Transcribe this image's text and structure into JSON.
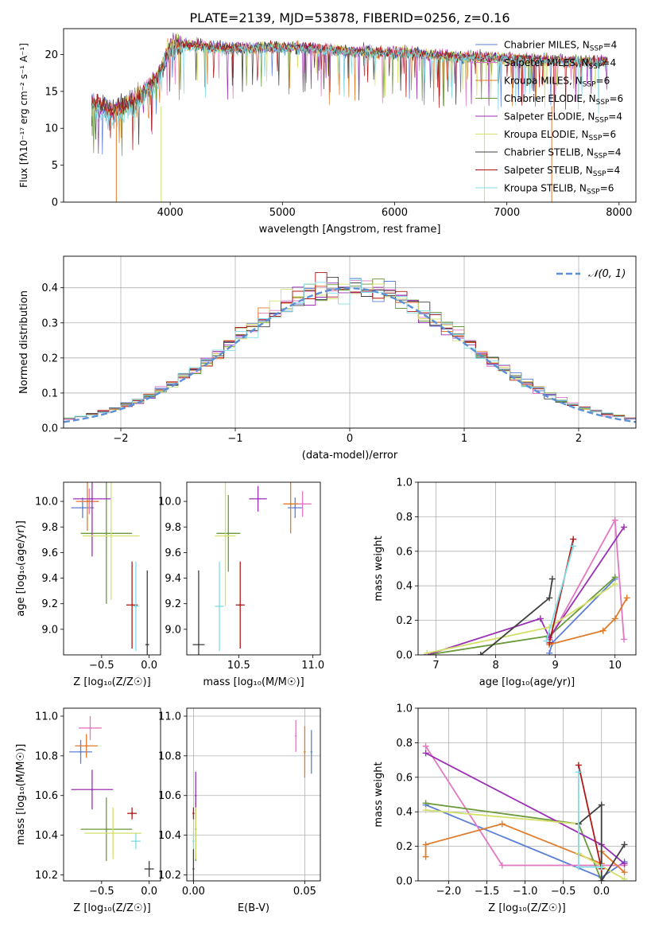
{
  "figure": {
    "title": "PLATE=2139, MJD=53878, FIBERID=0256, z=0.16"
  },
  "colors": {
    "chabrier_miles": "#5b7fd6",
    "salpeter_miles": "#e377c2",
    "kroupa_miles": "#e07b2a",
    "chabrier_elodie": "#6a9a3a",
    "salpeter_elodie": "#9b30b5",
    "kroupa_elodie": "#d4e06a",
    "chabrier_stelib": "#404040",
    "salpeter_stelib": "#b01818",
    "kroupa_stelib": "#80dde6",
    "normal_curve": "#5b8fd6"
  },
  "chart_data": [
    {
      "id": "spectrum",
      "type": "line",
      "xlabel": "wavelength [Angstrom, rest frame]",
      "ylabel": "Flux [fλ10⁻¹⁷ erg cm⁻² s⁻¹ A⁻¹]",
      "xlim": [
        3050,
        8150
      ],
      "ylim": [
        0,
        23.5
      ],
      "xticks": [
        4000,
        5000,
        6000,
        7000,
        8000
      ],
      "yticks": [
        0,
        5,
        10,
        15,
        20
      ],
      "grid": false,
      "legend_position": "right",
      "series": [
        {
          "name": "Chabrier MILES, N_SSP=4",
          "color": "#5b7fd6",
          "x": [
            3300,
            3500,
            3700,
            3900,
            4000,
            4200,
            4500,
            5000,
            5500,
            6000,
            6500,
            7000,
            7500,
            7900
          ],
          "y": [
            13.5,
            12.5,
            14.0,
            17.0,
            21.0,
            21.3,
            20.8,
            21.0,
            20.6,
            20.3,
            19.8,
            19.4,
            19.2,
            19.0
          ]
        },
        {
          "name": "Salpeter MILES, N_SSP=4",
          "color": "#e377c2",
          "x": [
            3300,
            3500,
            3700,
            3900,
            4000,
            4200,
            4500,
            5000,
            5500,
            6000,
            6500,
            7000,
            7500,
            7900
          ],
          "y": [
            13.3,
            12.4,
            14.1,
            17.2,
            21.2,
            21.4,
            20.9,
            21.1,
            20.7,
            20.3,
            19.9,
            19.5,
            19.2,
            19.1
          ]
        },
        {
          "name": "Kroupa MILES, N_SSP=6",
          "color": "#e07b2a",
          "x": [
            3300,
            3500,
            3700,
            3900,
            4000,
            4200,
            4500,
            5000,
            5500,
            6000,
            6500,
            7000,
            7500,
            7900
          ],
          "y": [
            13.4,
            12.5,
            14.0,
            17.1,
            21.0,
            21.2,
            20.8,
            21.0,
            20.6,
            20.2,
            19.8,
            19.5,
            19.1,
            19.0
          ]
        },
        {
          "name": "Chabrier ELODIE, N_SSP=6",
          "color": "#6a9a3a",
          "x": [
            3300,
            3500,
            3700,
            3900,
            4000,
            4200,
            4500,
            5000,
            5500,
            6000,
            6500,
            7000,
            7500,
            7900
          ],
          "y": [
            13.2,
            12.3,
            13.9,
            17.0,
            21.1,
            21.3,
            20.7,
            21.0,
            20.5,
            20.2,
            19.7,
            19.3,
            19.1,
            18.9
          ]
        },
        {
          "name": "Salpeter ELODIE, N_SSP=4",
          "color": "#9b30b5",
          "x": [
            3300,
            3500,
            3700,
            3900,
            4000,
            4200,
            4500,
            5000,
            5500,
            6000,
            6500,
            7000,
            7500,
            7900
          ],
          "y": [
            13.5,
            12.6,
            14.2,
            17.3,
            21.3,
            21.5,
            21.0,
            21.1,
            20.7,
            20.4,
            19.9,
            19.5,
            19.3,
            19.1
          ]
        },
        {
          "name": "Kroupa ELODIE, N_SSP=6",
          "color": "#d4e06a",
          "x": [
            3300,
            3500,
            3700,
            3900,
            4000,
            4200,
            4500,
            5000,
            5500,
            6000,
            6500,
            7000,
            7500,
            7900
          ],
          "y": [
            13.3,
            12.4,
            14.0,
            17.1,
            21.2,
            21.4,
            20.8,
            21.0,
            20.6,
            20.3,
            19.8,
            19.4,
            19.2,
            19.0
          ]
        },
        {
          "name": "Chabrier STELIB, N_SSP=4",
          "color": "#404040",
          "x": [
            3300,
            3500,
            3700,
            3900,
            4000,
            4200,
            4500,
            5000,
            5500,
            6000,
            6500,
            7000,
            7500,
            7900
          ],
          "y": [
            13.4,
            12.5,
            14.1,
            17.2,
            21.1,
            21.3,
            20.9,
            21.1,
            20.6,
            20.3,
            19.8,
            19.5,
            19.2,
            19.0
          ]
        },
        {
          "name": "Salpeter STELIB, N_SSP=4",
          "color": "#b01818",
          "x": [
            3300,
            3500,
            3700,
            3900,
            4000,
            4200,
            4500,
            5000,
            5500,
            6000,
            6500,
            7000,
            7500,
            7900
          ],
          "y": [
            13.4,
            12.5,
            14.0,
            17.1,
            21.1,
            21.3,
            20.8,
            21.0,
            20.6,
            20.3,
            19.8,
            19.4,
            19.2,
            19.0
          ]
        },
        {
          "name": "Kroupa STELIB, N_SSP=6",
          "color": "#80dde6",
          "x": [
            3300,
            3500,
            3700,
            3900,
            4000,
            4200,
            4500,
            5000,
            5500,
            6000,
            6500,
            7000,
            7500,
            7900
          ],
          "y": [
            12.5,
            11.0,
            13.0,
            16.5,
            20.5,
            20.8,
            20.5,
            20.8,
            20.4,
            20.0,
            19.6,
            19.3,
            19.0,
            18.8
          ]
        }
      ],
      "legend": [
        "Chabrier MILES, N$_{SSP}$=4",
        "Salpeter MILES, N$_{SSP}$=4",
        "Kroupa MILES, N$_{SSP}$=6",
        "Chabrier ELODIE, N$_{SSP}$=6",
        "Salpeter ELODIE, N$_{SSP}$=4",
        "Kroupa ELODIE, N$_{SSP}$=6",
        "Chabrier STELIB, N$_{SSP}$=4",
        "Salpeter STELIB, N$_{SSP}$=4",
        "Kroupa STELIB, N$_{SSP}$=6"
      ]
    },
    {
      "id": "residuals",
      "type": "step",
      "xlabel": "(data-model)/error",
      "ylabel": "Normed distribution",
      "xlim": [
        -2.5,
        2.5
      ],
      "ylim": [
        0,
        0.49
      ],
      "xticks": [
        -2,
        -1,
        0,
        1,
        2
      ],
      "yticks": [
        0.0,
        0.1,
        0.2,
        0.3,
        0.4
      ],
      "grid": true,
      "legend_position": "top-right",
      "legend": [
        "𝒩(0, 1)"
      ],
      "normal_curve": {
        "mean": 0,
        "std": 1
      },
      "histogram_bin_width": 0.1,
      "histogram_range": [
        -2.5,
        2.5
      ]
    },
    {
      "id": "age_vs_Z",
      "type": "errorbar",
      "xlabel": "Z [log₁₀(Z/Z☉)]",
      "ylabel": "age  [log₁₀(age/yr)]",
      "xlim": [
        -0.9,
        0.12
      ],
      "ylim": [
        8.8,
        10.15
      ],
      "xticks": [
        -0.5,
        0.0
      ],
      "yticks": [
        9.0,
        9.2,
        9.4,
        9.6,
        9.8,
        10.0
      ],
      "grid": false,
      "points": [
        {
          "x": -0.7,
          "xerr": 0.12,
          "y": 9.95,
          "yerr": 0.08,
          "color": "#5b7fd6"
        },
        {
          "x": -0.63,
          "xerr": 0.1,
          "y": 10.0,
          "yerr": 0.1,
          "color": "#e377c2"
        },
        {
          "x": -0.65,
          "xerr": 0.12,
          "y": 10.0,
          "yerr": 0.23,
          "color": "#e07b2a"
        },
        {
          "x": -0.45,
          "xerr": 0.27,
          "y": 9.75,
          "yerr": 0.55,
          "color": "#6a9a3a"
        },
        {
          "x": -0.6,
          "xerr": 0.2,
          "y": 10.02,
          "yerr": 0.45,
          "color": "#9b30b5"
        },
        {
          "x": -0.4,
          "xerr": 0.3,
          "y": 9.73,
          "yerr": 0.5,
          "color": "#d4e06a"
        },
        {
          "x": -0.02,
          "xerr": 0.02,
          "y": 8.88,
          "yerr": 0.58,
          "color": "#404040"
        },
        {
          "x": -0.18,
          "xerr": 0.06,
          "y": 9.19,
          "yerr": 0.34,
          "color": "#b01818"
        },
        {
          "x": -0.14,
          "xerr": 0.03,
          "y": 9.18,
          "yerr": 0.35,
          "color": "#80dde6"
        }
      ]
    },
    {
      "id": "age_vs_mass",
      "type": "errorbar",
      "xlabel": "mass [log₁₀(M/M☉)]",
      "ylabel": "",
      "xlim": [
        10.15,
        11.05
      ],
      "ylim": [
        8.8,
        10.15
      ],
      "xticks": [
        10.5,
        11.0
      ],
      "yticks": [
        9.0,
        9.2,
        9.4,
        9.6,
        9.8,
        10.0
      ],
      "grid": false,
      "points": [
        {
          "x": 10.88,
          "xerr": 0.05,
          "y": 9.95,
          "yerr": 0.08,
          "color": "#5b7fd6"
        },
        {
          "x": 10.93,
          "xerr": 0.06,
          "y": 9.98,
          "yerr": 0.1,
          "color": "#e377c2"
        },
        {
          "x": 10.85,
          "xerr": 0.05,
          "y": 9.98,
          "yerr": 0.23,
          "color": "#e07b2a"
        },
        {
          "x": 10.43,
          "xerr": 0.08,
          "y": 9.75,
          "yerr": 0.3,
          "color": "#6a9a3a"
        },
        {
          "x": 10.63,
          "xerr": 0.06,
          "y": 10.02,
          "yerr": 0.1,
          "color": "#9b30b5"
        },
        {
          "x": 10.41,
          "xerr": 0.07,
          "y": 9.73,
          "yerr": 0.55,
          "color": "#d4e06a"
        },
        {
          "x": 10.23,
          "xerr": 0.04,
          "y": 8.88,
          "yerr": 0.58,
          "color": "#404040"
        },
        {
          "x": 10.51,
          "xerr": 0.03,
          "y": 9.19,
          "yerr": 0.34,
          "color": "#b01818"
        },
        {
          "x": 10.37,
          "xerr": 0.03,
          "y": 9.18,
          "yerr": 0.35,
          "color": "#80dde6"
        }
      ]
    },
    {
      "id": "weight_vs_age",
      "type": "line",
      "xlabel": "age  [log₁₀(age/yr)]",
      "ylabel": "mass weight",
      "xlim": [
        6.7,
        10.35
      ],
      "ylim": [
        0,
        1.0
      ],
      "xticks": [
        7,
        8,
        9,
        10
      ],
      "yticks": [
        0.0,
        0.2,
        0.4,
        0.6,
        0.8,
        1.0
      ],
      "grid": true,
      "series": [
        {
          "color": "#5b7fd6",
          "x": [
            8.9,
            8.95,
            10.0
          ],
          "y": [
            0.01,
            0.07,
            0.44
          ]
        },
        {
          "color": "#e377c2",
          "x": [
            8.9,
            10.0,
            10.15
          ],
          "y": [
            0.09,
            0.78,
            0.09
          ]
        },
        {
          "color": "#e07b2a",
          "x": [
            8.9,
            9.8,
            10.0,
            10.2
          ],
          "y": [
            0.06,
            0.14,
            0.21,
            0.33
          ]
        },
        {
          "color": "#6a9a3a",
          "x": [
            6.85,
            8.9,
            10.0
          ],
          "y": [
            0.0,
            0.11,
            0.45
          ]
        },
        {
          "color": "#9b30b5",
          "x": [
            6.85,
            8.75,
            8.9,
            10.15
          ],
          "y": [
            0.0,
            0.21,
            0.1,
            0.74
          ]
        },
        {
          "color": "#d4e06a",
          "x": [
            6.85,
            8.9,
            10.0
          ],
          "y": [
            0.01,
            0.16,
            0.41
          ]
        },
        {
          "color": "#404040",
          "x": [
            7.75,
            8.9,
            8.95
          ],
          "y": [
            0.0,
            0.33,
            0.44
          ]
        },
        {
          "color": "#b01818",
          "x": [
            8.9,
            9.3
          ],
          "y": [
            0.07,
            0.67
          ]
        },
        {
          "color": "#80dde6",
          "x": [
            8.85,
            9.3
          ],
          "y": [
            0.08,
            0.63
          ]
        }
      ]
    },
    {
      "id": "mass_vs_Z",
      "type": "errorbar",
      "xlabel": "Z [log₁₀(Z/Z☉)]",
      "ylabel": "mass [log₁₀(M/M☉)]",
      "xlim": [
        -0.9,
        0.12
      ],
      "ylim": [
        10.17,
        11.04
      ],
      "xticks": [
        -0.5,
        0.0
      ],
      "yticks": [
        10.2,
        10.4,
        10.6,
        10.8,
        11.0
      ],
      "grid": false,
      "points": [
        {
          "x": -0.72,
          "xerr": 0.12,
          "y": 10.82,
          "yerr": 0.06,
          "color": "#5b7fd6"
        },
        {
          "x": -0.62,
          "xerr": 0.12,
          "y": 10.94,
          "yerr": 0.06,
          "color": "#e377c2"
        },
        {
          "x": -0.66,
          "xerr": 0.12,
          "y": 10.85,
          "yerr": 0.06,
          "color": "#e07b2a"
        },
        {
          "x": -0.45,
          "xerr": 0.27,
          "y": 10.43,
          "yerr": 0.16,
          "color": "#6a9a3a"
        },
        {
          "x": -0.6,
          "xerr": 0.22,
          "y": 10.63,
          "yerr": 0.1,
          "color": "#9b30b5"
        },
        {
          "x": -0.38,
          "xerr": 0.3,
          "y": 10.41,
          "yerr": 0.13,
          "color": "#d4e06a"
        },
        {
          "x": 0.0,
          "xerr": 0.05,
          "y": 10.23,
          "yerr": 0.04,
          "color": "#404040"
        },
        {
          "x": -0.18,
          "xerr": 0.05,
          "y": 10.51,
          "yerr": 0.03,
          "color": "#b01818"
        },
        {
          "x": -0.14,
          "xerr": 0.05,
          "y": 10.37,
          "yerr": 0.04,
          "color": "#80dde6"
        }
      ]
    },
    {
      "id": "mass_vs_ebv",
      "type": "errorbar",
      "xlabel": "E(B-V)",
      "ylabel": "",
      "xlim": [
        -0.003,
        0.057
      ],
      "ylim": [
        10.17,
        11.04
      ],
      "xticks": [
        0.0,
        0.05
      ],
      "yticks": [
        10.2,
        10.4,
        10.6,
        10.8,
        11.0
      ],
      "grid": true,
      "points": [
        {
          "x": 0.053,
          "xerr": 0.0,
          "y": 10.82,
          "yerr": 0.11,
          "color": "#5b7fd6"
        },
        {
          "x": 0.046,
          "xerr": 0.0,
          "y": 10.9,
          "yerr": 0.08,
          "color": "#e377c2"
        },
        {
          "x": 0.05,
          "xerr": 0.0,
          "y": 10.82,
          "yerr": 0.13,
          "color": "#e07b2a"
        },
        {
          "x": 0.001,
          "xerr": 0.0,
          "y": 10.43,
          "yerr": 0.16,
          "color": "#6a9a3a"
        },
        {
          "x": 0.001,
          "xerr": 0.0,
          "y": 10.6,
          "yerr": 0.12,
          "color": "#9b30b5"
        },
        {
          "x": 0.001,
          "xerr": 0.0,
          "y": 10.41,
          "yerr": 0.13,
          "color": "#d4e06a"
        },
        {
          "x": 0.0,
          "xerr": 0.0,
          "y": 10.23,
          "yerr": 0.1,
          "color": "#404040"
        },
        {
          "x": 0.0,
          "xerr": 0.0,
          "y": 10.51,
          "yerr": 0.03,
          "color": "#b01818"
        },
        {
          "x": 0.0,
          "xerr": 0.0,
          "y": 10.37,
          "yerr": 0.04,
          "color": "#80dde6"
        }
      ]
    },
    {
      "id": "weight_vs_Z",
      "type": "line",
      "xlabel": "Z [log₁₀(Z/Z☉)]",
      "ylabel": "mass weight",
      "xlim": [
        -2.4,
        0.45
      ],
      "ylim": [
        0,
        1.0
      ],
      "xticks": [
        -2.0,
        -1.5,
        -1.0,
        -0.5,
        0.0
      ],
      "yticks": [
        0.0,
        0.2,
        0.4,
        0.6,
        0.8,
        1.0
      ],
      "grid": true,
      "series": [
        {
          "color": "#5b7fd6",
          "x": [
            -2.3,
            0.0,
            0.3
          ],
          "y": [
            0.44,
            0.02,
            0.11
          ]
        },
        {
          "color": "#e377c2",
          "x": [
            -2.3,
            -1.3,
            0.3
          ],
          "y": [
            0.78,
            0.09,
            0.09
          ]
        },
        {
          "color": "#e07b2a",
          "x": [
            -2.3,
            -2.3,
            -1.3,
            0.0,
            0.0,
            0.3
          ],
          "y": [
            0.14,
            0.21,
            0.33,
            0.1,
            0.17,
            0.05
          ]
        },
        {
          "color": "#6a9a3a",
          "x": [
            -2.3,
            -0.3,
            0.0
          ],
          "y": [
            0.45,
            0.33,
            0.0
          ]
        },
        {
          "color": "#9b30b5",
          "x": [
            -2.3,
            0.0,
            0.3
          ],
          "y": [
            0.74,
            0.21,
            0.1
          ]
        },
        {
          "color": "#d4e06a",
          "x": [
            -2.3,
            -0.3,
            -0.3,
            0.3
          ],
          "y": [
            0.41,
            0.33,
            0.16,
            0.01
          ]
        },
        {
          "color": "#404040",
          "x": [
            -0.3,
            0.0,
            0.0,
            0.3
          ],
          "y": [
            0.33,
            0.44,
            0.0,
            0.21
          ]
        },
        {
          "color": "#b01818",
          "x": [
            -0.3,
            0.0
          ],
          "y": [
            0.67,
            0.07
          ]
        },
        {
          "color": "#80dde6",
          "x": [
            -0.3,
            -0.3,
            0.0
          ],
          "y": [
            0.63,
            0.08,
            0.08
          ]
        }
      ]
    }
  ]
}
